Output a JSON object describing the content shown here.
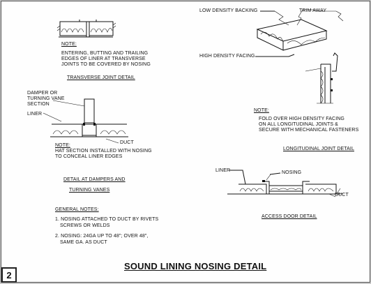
{
  "sheet": {
    "title": "SOUND LINING NOSING DETAIL",
    "number": "2"
  },
  "transverse": {
    "note_label": "NOTE:",
    "note_lines": [
      "ENTERING, BUTTING AND TRAILING",
      "EDGES OF LINER AT TRANSVERSE",
      "JOINTS TO BE COVERED BY NOSING"
    ],
    "title": "TRANSVERSE JOINT DETAIL"
  },
  "dampers": {
    "callout_lines": [
      "DAMPER OR",
      "TURNING VANE",
      "SECTION"
    ],
    "liner_label": "LINER",
    "duct_label": "DUCT",
    "note_label": "NOTE:",
    "note_lines": [
      "HAT SECTION INSTALLED WITH NOSING",
      "TO CONCEAL LINER EDGES"
    ],
    "title_lines": [
      "DETAIL AT DAMPERS AND",
      "TURNING VANES"
    ]
  },
  "general_notes": {
    "title": "GENERAL NOTES:",
    "note1_lines": [
      "1. NOSING ATTACHED TO DUCT BY RIVETS",
      "SCREWS OR WELDS"
    ],
    "note2_lines": [
      "2. NOSING: 24GA UP TO 48\"; OVER 48\",",
      "SAME GA. AS DUCT"
    ]
  },
  "longitudinal": {
    "low_density_label": "LOW DENSITY BACKING",
    "trim_away_label": "TRIM AWAY",
    "high_density_label": "HIGH DENSITY FACING",
    "note_label": "NOTE:",
    "note_lines": [
      "FOLD OVER HIGH DENSITY FACING",
      "ON ALL LONGITUDINAL JOINTS &",
      "SECURE WITH MECHANICAL FASTENERS"
    ],
    "title": "LONGITUDINAL JOINT DETAIL"
  },
  "access_door": {
    "liner_label": "LINER",
    "nosing_label": "NOSING",
    "duct_label": "DUCT",
    "title": "ACCESS DOOR DETAIL"
  }
}
